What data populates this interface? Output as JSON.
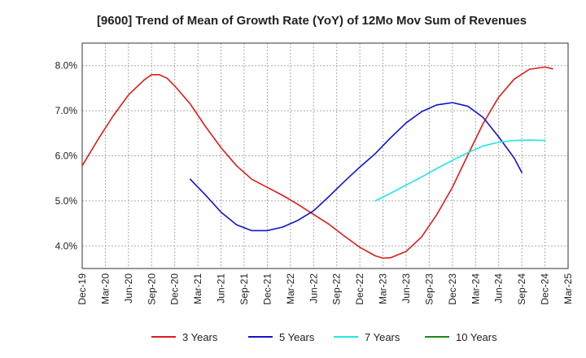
{
  "chart_data": {
    "type": "line",
    "title": "[9600]  Trend of Mean of Growth Rate (YoY) of 12Mo Mov Sum of Revenues",
    "xlabel": "",
    "ylabel": "",
    "x_categories": [
      "Dec-19",
      "Mar-20",
      "Jun-20",
      "Sep-20",
      "Dec-20",
      "Mar-21",
      "Jun-21",
      "Sep-21",
      "Dec-21",
      "Mar-22",
      "Jun-22",
      "Sep-22",
      "Dec-22",
      "Mar-23",
      "Jun-23",
      "Sep-23",
      "Dec-23",
      "Mar-24",
      "Jun-24",
      "Sep-24",
      "Dec-24",
      "Mar-25"
    ],
    "ylim": [
      3.5,
      8.5
    ],
    "y_ticks": [
      4.0,
      5.0,
      6.0,
      7.0,
      8.0
    ],
    "y_tick_labels": [
      "4.0%",
      "5.0%",
      "6.0%",
      "7.0%",
      "8.0%"
    ],
    "grid": true,
    "legend_position": "bottom",
    "series": [
      {
        "name": "3 Years",
        "color": "#dd1c1c",
        "points": [
          [
            0,
            5.78
          ],
          [
            0.67,
            6.35
          ],
          [
            1.33,
            6.88
          ],
          [
            2,
            7.35
          ],
          [
            2.67,
            7.68
          ],
          [
            3,
            7.8
          ],
          [
            3.33,
            7.8
          ],
          [
            3.67,
            7.72
          ],
          [
            4,
            7.55
          ],
          [
            4.67,
            7.15
          ],
          [
            5.33,
            6.65
          ],
          [
            6,
            6.18
          ],
          [
            6.67,
            5.78
          ],
          [
            7.33,
            5.48
          ],
          [
            8,
            5.3
          ],
          [
            8.67,
            5.12
          ],
          [
            9.33,
            4.92
          ],
          [
            10,
            4.7
          ],
          [
            10.67,
            4.48
          ],
          [
            11.33,
            4.22
          ],
          [
            12,
            3.97
          ],
          [
            12.67,
            3.78
          ],
          [
            13,
            3.73
          ],
          [
            13.33,
            3.74
          ],
          [
            14,
            3.88
          ],
          [
            14.67,
            4.2
          ],
          [
            15.33,
            4.7
          ],
          [
            16,
            5.3
          ],
          [
            16.67,
            6.02
          ],
          [
            17.33,
            6.72
          ],
          [
            18,
            7.3
          ],
          [
            18.67,
            7.7
          ],
          [
            19.33,
            7.92
          ],
          [
            20,
            7.97
          ],
          [
            20.33,
            7.93
          ]
        ]
      },
      {
        "name": "5 Years",
        "color": "#1414c8",
        "points": [
          [
            4.67,
            5.48
          ],
          [
            5.33,
            5.13
          ],
          [
            6,
            4.75
          ],
          [
            6.67,
            4.47
          ],
          [
            7.33,
            4.34
          ],
          [
            8,
            4.34
          ],
          [
            8.67,
            4.42
          ],
          [
            9.33,
            4.57
          ],
          [
            10,
            4.78
          ],
          [
            10.67,
            5.1
          ],
          [
            11.33,
            5.43
          ],
          [
            12,
            5.75
          ],
          [
            12.67,
            6.05
          ],
          [
            13.33,
            6.4
          ],
          [
            14,
            6.73
          ],
          [
            14.67,
            6.98
          ],
          [
            15.33,
            7.13
          ],
          [
            16,
            7.18
          ],
          [
            16.67,
            7.1
          ],
          [
            17.33,
            6.85
          ],
          [
            18,
            6.42
          ],
          [
            18.67,
            5.95
          ],
          [
            19,
            5.63
          ]
        ]
      },
      {
        "name": "7 Years",
        "color": "#22e6e6",
        "points": [
          [
            12.67,
            5.0
          ],
          [
            13.33,
            5.17
          ],
          [
            14,
            5.35
          ],
          [
            14.67,
            5.53
          ],
          [
            15.33,
            5.72
          ],
          [
            16,
            5.9
          ],
          [
            16.67,
            6.07
          ],
          [
            17.33,
            6.22
          ],
          [
            18,
            6.3
          ],
          [
            18.67,
            6.34
          ],
          [
            19.33,
            6.35
          ],
          [
            20,
            6.34
          ]
        ]
      },
      {
        "name": "10 Years",
        "color": "#1a8a1a",
        "points": []
      }
    ]
  }
}
